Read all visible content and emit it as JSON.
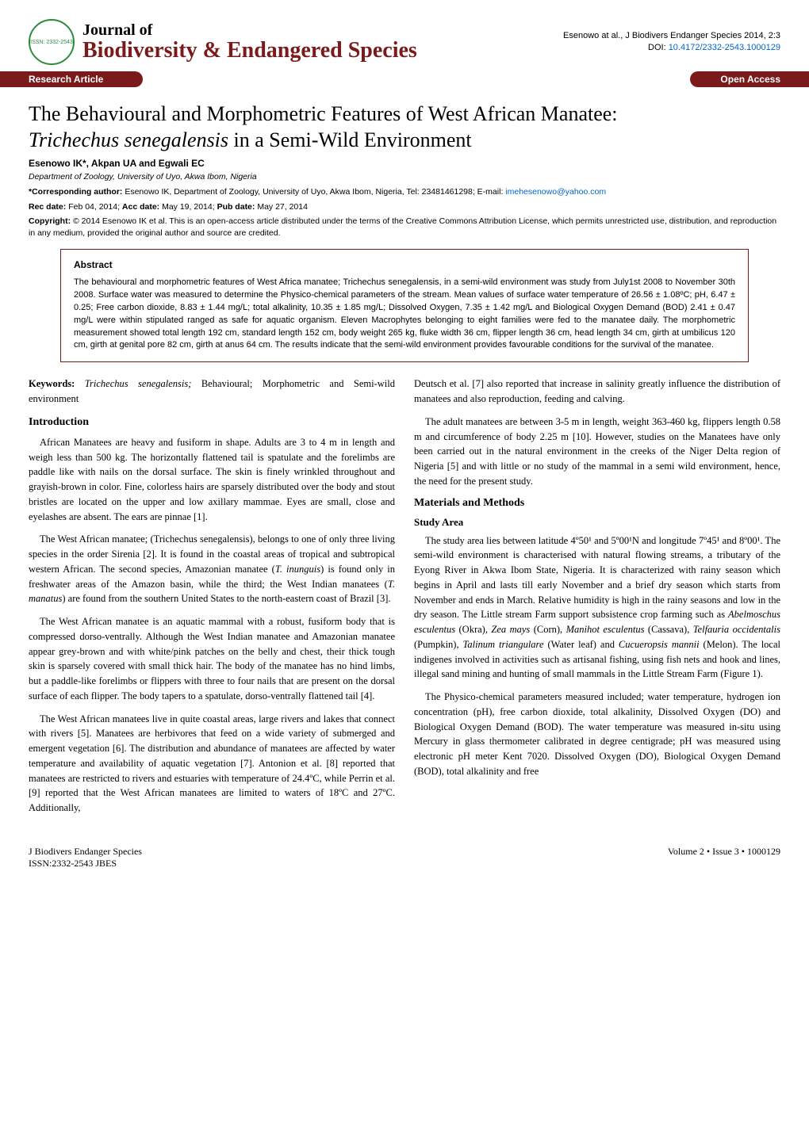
{
  "colors": {
    "brand_red": "#7a1a1a",
    "brand_green": "#2e8b3d",
    "link_blue": "#0066cc",
    "text": "#000000",
    "background": "#ffffff"
  },
  "typography": {
    "body_family": "Times New Roman",
    "ui_family": "Arial",
    "title_fontsize": 26,
    "journal_top_fontsize": 20,
    "journal_bottom_fontsize": 28,
    "section_heading_fontsize": 14,
    "body_fontsize": 12.5,
    "meta_fontsize": 10.5,
    "abstract_fontsize": 11
  },
  "masthead": {
    "logo_text": "ISSN: 2332-2543",
    "journal_top": "Journal of",
    "journal_bottom": "Biodiversity & Endangered Species",
    "citation": "Esenowo at al., J Biodivers Endanger Species 2014, 2:3",
    "doi_label": "DOI: ",
    "doi": "10.4172/2332-2543.1000129"
  },
  "ribbon": {
    "left": "Research Article",
    "right": "Open Access"
  },
  "title_line1": "The Behavioural and Morphometric Features of West African Manatee:",
  "title_line2_italic": "Trichechus senegalensis",
  "title_line2_rest": " in a Semi-Wild Environment",
  "authors": "Esenowo IK*, Akpan UA and Egwali EC",
  "affiliation": "Department of Zoology, University of Uyo, Akwa Ibom, Nigeria",
  "corresponding_label": "*Corresponding author: ",
  "corresponding_text": "Esenowo IK, Department of Zoology, University of Uyo, Akwa Ibom, Nigeria, Tel: 23481461298; E-mail: ",
  "corresponding_email": "imehesenowo@yahoo.com",
  "dates_rec_label": "Rec date: ",
  "dates_rec": "Feb 04, 2014; ",
  "dates_acc_label": "Acc date: ",
  "dates_acc": "May 19, 2014; ",
  "dates_pub_label": "Pub date: ",
  "dates_pub": "May 27, 2014",
  "copyright_label": "Copyright: ",
  "copyright_text": "© 2014 Esenowo IK et al. This is an open-access article distributed under the terms of the Creative Commons Attribution License, which permits unrestricted use, distribution, and reproduction in any medium, provided the original author and source are credited.",
  "abstract": {
    "heading": "Abstract",
    "text": "The behavioural and morphometric features of West Africa manatee; Trichechus senegalensis, in a semi-wild environment was study from July1st 2008 to November 30th 2008. Surface water was measured to determine the Physico-chemical parameters of the stream. Mean values of surface water temperature of 26.56 ± 1.08ºC; pH, 6.47 ± 0.25; Free carbon dioxide, 8.83 ± 1.44 mg/L; total alkalinity, 10.35 ± 1.85 mg/L; Dissolved Oxygen, 7.35 ± 1.42 mg/L and Biological Oxygen Demand (BOD) 2.41 ± 0.47 mg/L were within stipulated ranged as safe for aquatic organism. Eleven Macrophytes belonging to eight families were fed to the manatee daily. The morphometric measurement showed total length 192 cm, standard length 152 cm, body weight 265 kg, fluke width 36 cm, flipper length 36 cm, head length 34 cm, girth at umbilicus 120 cm, girth at genital pore 82 cm, girth at anus 64 cm. The results indicate that the semi-wild environment provides favourable conditions for the survival of the manatee."
  },
  "keywords_label": "Keywords: ",
  "keywords_italic": "Trichechus senegalensis;",
  "keywords_rest": " Behavioural; Morphometric and Semi-wild environment",
  "left_col": {
    "intro_heading": "Introduction",
    "p1": "African Manatees are heavy and fusiform in shape. Adults are 3 to 4 m in length and weigh less than 500 kg. The horizontally flattened tail is spatulate and the forelimbs are paddle like with nails on the dorsal surface. The skin is finely wrinkled throughout and grayish-brown in color. Fine, colorless hairs are sparsely distributed over the body and stout bristles are located on the upper and low axillary mammae. Eyes are small, close and eyelashes are absent. The ears are pinnae [1].",
    "p2_a": "The West African manatee; (Trichechus senegalensis), belongs to one of only three living species in the order Sirenia [2]. It is found in the coastal areas of tropical and subtropical western African. The second species, Amazonian manatee (",
    "p2_i1": "T. inunguis",
    "p2_b": ") is found only in freshwater areas of the Amazon basin, while the third; the West Indian manatees (",
    "p2_i2": "T. manatus",
    "p2_c": ") are found from the southern United States to the north-eastern coast of Brazil [3].",
    "p3": "The West African manatee is an aquatic mammal with a robust, fusiform body that is compressed dorso-ventrally. Although the West Indian manatee and Amazonian manatee appear grey-brown and with white/pink patches on the belly and chest, their thick tough skin is sparsely covered with small thick hair. The body of the manatee has no hind limbs, but a paddle-like forelimbs or flippers with three to four nails that are present on the dorsal surface of each flipper. The body tapers to a spatulate, dorso-ventrally flattened tail [4].",
    "p4": "The West African manatees live in quite coastal areas, large rivers and lakes that connect with rivers [5]. Manatees are herbivores that feed on a wide variety of submerged and emergent vegetation [6]. The distribution and abundance of manatees are affected by water temperature and availability of aquatic vegetation [7]. Antonion et al. [8] reported that manatees are restricted to rivers and estuaries with temperature of 24.4ºC, while Perrin et al. [9] reported that the West African manatees are limited to waters of 18ºC and 27ºC. Additionally,"
  },
  "right_col": {
    "p1": "Deutsch et al. [7] also reported that increase in salinity greatly influence the distribution of manatees and also reproduction, feeding and calving.",
    "p2": "The adult manatees are between 3-5 m in length, weight 363-460 kg, flippers length 0.58 m and circumference of body 2.25 m [10]. However, studies on the Manatees have only been carried out in the natural environment in the creeks of the Niger Delta region of Nigeria [5] and with little or no study of the mammal in a semi wild environment, hence, the need for the present study.",
    "methods_heading": "Materials and Methods",
    "study_area_heading": "Study Area",
    "p3_a": "The study area lies between latitude 4º50¹ and 5º00¹N and longitude 7º45¹ and 8º00¹. The semi-wild environment is characterised with natural flowing streams, a tributary of the Eyong River in Akwa Ibom State, Nigeria. It is characterized with rainy season which begins in April and lasts till early November and a brief dry season which starts from November and ends in March. Relative humidity is high in the rainy seasons and low in the dry season. The Little stream Farm support subsistence crop farming such as ",
    "p3_i1": "Abelmoschus esculentus",
    "p3_b": " (Okra), ",
    "p3_i2": "Zea mays",
    "p3_c": " (Corn), ",
    "p3_i3": "Manihot esculentus",
    "p3_d": " (Cassava), ",
    "p3_i4": "Telfauria occidentalis",
    "p3_e": " (Pumpkin), ",
    "p3_i5": "Talinum triangulare",
    "p3_f": " (Water leaf) and ",
    "p3_i6": "Cucueropsis mannii",
    "p3_g": " (Melon). The local indigenes involved in activities such as artisanal fishing, using fish nets and hook and lines, illegal sand mining and hunting of small mammals in the Little Stream Farm (Figure 1).",
    "p4": "The Physico-chemical parameters measured included; water temperature, hydrogen ion concentration (pH), free carbon dioxide, total alkalinity, Dissolved Oxygen (DO) and Biological Oxygen Demand (BOD). The water temperature was measured in-situ using Mercury in glass thermometer calibrated in degree centigrade; pH was measured using electronic pH meter Kent 7020. Dissolved Oxygen (DO), Biological Oxygen Demand (BOD), total alkalinity and free"
  },
  "footer": {
    "left_line1": "J Biodivers Endanger Species",
    "left_line2": "ISSN:2332-2543 JBES",
    "right": "Volume 2 • Issue 3 • 1000129"
  }
}
